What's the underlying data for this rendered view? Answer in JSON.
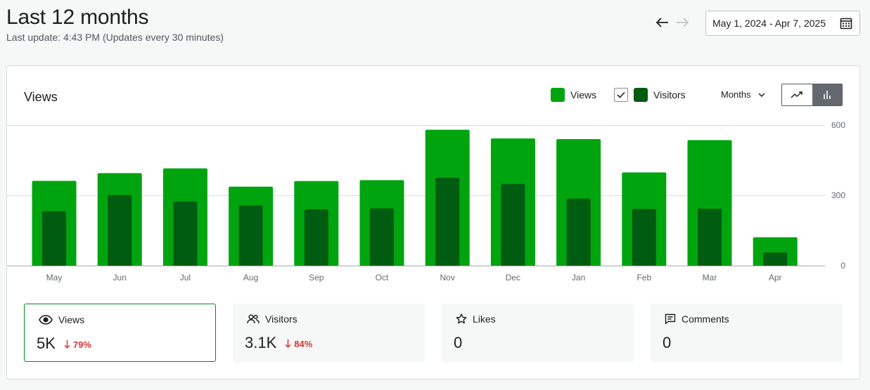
{
  "header": {
    "title": "Last 12 months",
    "subtitle": "Last update: 4:43 PM (Updates every 30 minutes)",
    "date_range": "May 1, 2024 - Apr 7, 2025"
  },
  "card": {
    "title": "Views",
    "legend": [
      {
        "label": "Views",
        "color": "#00a40f"
      },
      {
        "label": "Visitors",
        "color": "#005c10",
        "checked": true
      }
    ],
    "period": "Months",
    "chart_types": [
      "line",
      "bar"
    ],
    "active_chart_type": "bar"
  },
  "chart_data": {
    "type": "bar",
    "categories": [
      "May",
      "Jun",
      "Jul",
      "Aug",
      "Sep",
      "Oct",
      "Nov",
      "Dec",
      "Jan",
      "Feb",
      "Mar",
      "Apr"
    ],
    "series": [
      {
        "name": "Views",
        "color": "#00a40f",
        "values": [
          362,
          395,
          415,
          337,
          361,
          365,
          580,
          543,
          540,
          398,
          536,
          121
        ]
      },
      {
        "name": "Visitors",
        "color": "#005c10",
        "values": [
          232,
          301,
          274,
          257,
          240,
          244,
          375,
          349,
          286,
          242,
          243,
          56
        ]
      }
    ],
    "yticks": [
      0,
      300,
      600
    ],
    "ylim": [
      0,
      600
    ],
    "grid": true,
    "y_axis_side": "right"
  },
  "stats": [
    {
      "label": "Views",
      "icon": "eye-icon",
      "value": "5K",
      "change": "79%",
      "direction": "down",
      "active": true
    },
    {
      "label": "Visitors",
      "icon": "people-icon",
      "value": "3.1K",
      "change": "84%",
      "direction": "down",
      "active": false
    },
    {
      "label": "Likes",
      "icon": "star-icon",
      "value": "0",
      "change": "",
      "direction": "",
      "active": false
    },
    {
      "label": "Comments",
      "icon": "comment-icon",
      "value": "0",
      "change": "",
      "direction": "",
      "active": false
    }
  ]
}
